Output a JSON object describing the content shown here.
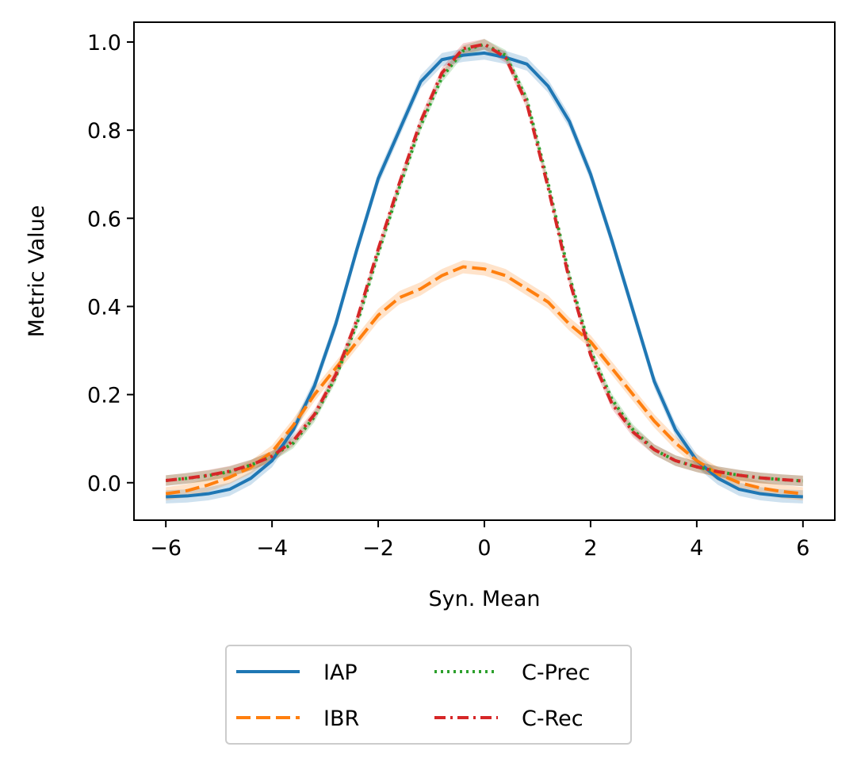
{
  "chart_data": {
    "type": "line",
    "title": "",
    "xlabel": "Syn. Mean",
    "ylabel": "Metric Value",
    "xlim": [
      -6.6,
      6.6
    ],
    "ylim": [
      -0.085,
      1.045
    ],
    "xticks": [
      -6,
      -4,
      -2,
      0,
      2,
      4,
      6
    ],
    "xtick_labels": [
      "−6",
      "−4",
      "−2",
      "0",
      "2",
      "4",
      "6"
    ],
    "yticks": [
      0.0,
      0.2,
      0.4,
      0.6,
      0.8,
      1.0
    ],
    "ytick_labels": [
      "0.0",
      "0.2",
      "0.4",
      "0.6",
      "0.8",
      "1.0"
    ],
    "legend_position": "below-center",
    "x": [
      -6.0,
      -5.6,
      -5.2,
      -4.8,
      -4.4,
      -4.0,
      -3.6,
      -3.2,
      -2.8,
      -2.4,
      -2.0,
      -1.6,
      -1.2,
      -0.8,
      -0.4,
      0.0,
      0.4,
      0.8,
      1.2,
      1.6,
      2.0,
      2.4,
      2.8,
      3.2,
      3.6,
      4.0,
      4.4,
      4.8,
      5.2,
      5.6,
      6.0
    ],
    "series": [
      {
        "name": "IAP",
        "color": "#1f77b4",
        "dash": "solid",
        "band": 0.015,
        "values": [
          -0.032,
          -0.03,
          -0.025,
          -0.015,
          0.01,
          0.05,
          0.12,
          0.22,
          0.36,
          0.53,
          0.69,
          0.8,
          0.91,
          0.96,
          0.97,
          0.975,
          0.965,
          0.95,
          0.9,
          0.82,
          0.7,
          0.55,
          0.39,
          0.23,
          0.12,
          0.05,
          0.01,
          -0.015,
          -0.025,
          -0.03,
          -0.032
        ]
      },
      {
        "name": "IBR",
        "color": "#ff7f0e",
        "dash": "dashed",
        "band": 0.015,
        "values": [
          -0.025,
          -0.018,
          -0.005,
          0.012,
          0.035,
          0.07,
          0.13,
          0.2,
          0.26,
          0.32,
          0.38,
          0.42,
          0.44,
          0.47,
          0.49,
          0.485,
          0.47,
          0.44,
          0.41,
          0.36,
          0.32,
          0.26,
          0.2,
          0.14,
          0.09,
          0.05,
          0.02,
          0.0,
          -0.012,
          -0.02,
          -0.025
        ]
      },
      {
        "name": "C-Prec",
        "color": "#2ca02c",
        "dash": "dotted",
        "band": 0.012,
        "values": [
          0.005,
          0.01,
          0.016,
          0.025,
          0.04,
          0.06,
          0.09,
          0.15,
          0.24,
          0.36,
          0.52,
          0.67,
          0.81,
          0.92,
          0.98,
          0.995,
          0.97,
          0.87,
          0.68,
          0.47,
          0.3,
          0.19,
          0.12,
          0.075,
          0.05,
          0.036,
          0.025,
          0.017,
          0.011,
          0.007,
          0.004
        ]
      },
      {
        "name": "C-Rec",
        "color": "#d62728",
        "dash": "dashdot",
        "band": 0.012,
        "values": [
          0.005,
          0.01,
          0.017,
          0.026,
          0.04,
          0.06,
          0.095,
          0.155,
          0.245,
          0.37,
          0.53,
          0.68,
          0.82,
          0.93,
          0.985,
          0.995,
          0.965,
          0.86,
          0.67,
          0.46,
          0.29,
          0.18,
          0.115,
          0.075,
          0.05,
          0.036,
          0.025,
          0.017,
          0.011,
          0.007,
          0.004
        ]
      }
    ]
  }
}
